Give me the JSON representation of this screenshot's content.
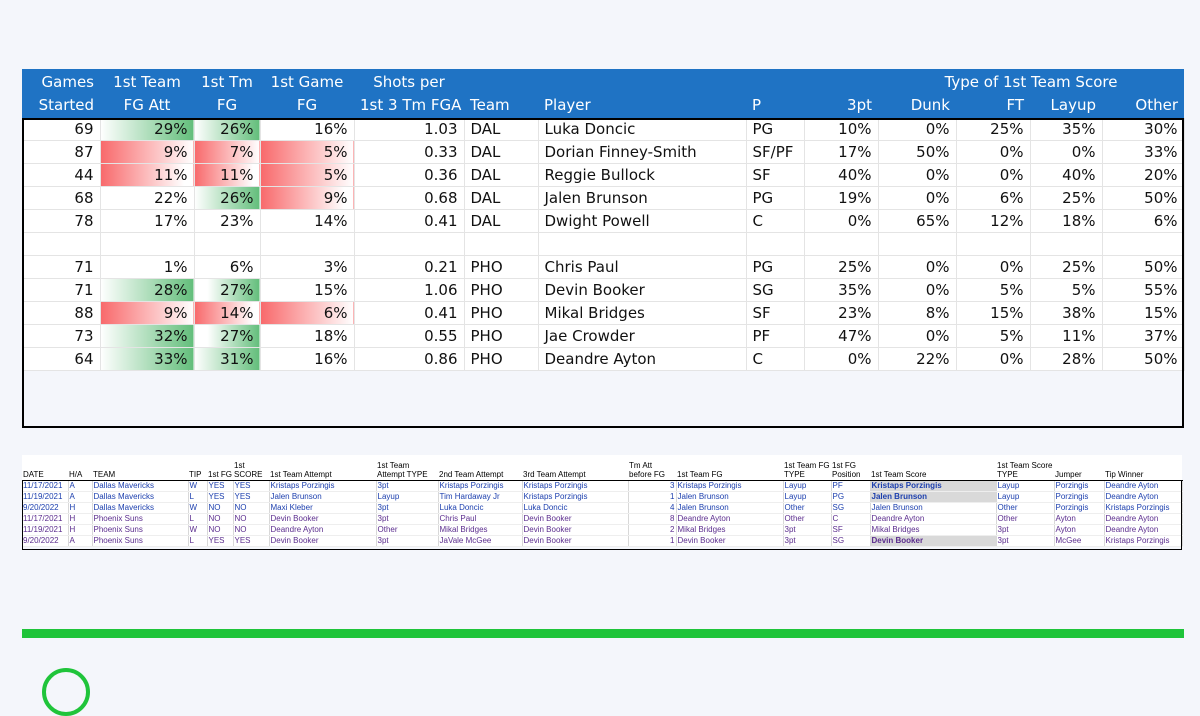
{
  "main_table": {
    "headers_top": [
      "Games",
      "1st Team",
      "1st Tm",
      "1st Game",
      "Shots per",
      "",
      "",
      "",
      "",
      "Type of 1st Team Score",
      "",
      "",
      ""
    ],
    "headers_bottom": [
      "Started",
      "FG Att",
      "FG",
      "FG",
      "1st 3 Tm FGA",
      "Team",
      "Player",
      "P",
      "3pt",
      "Dunk",
      "FT",
      "Layup",
      "Other"
    ],
    "rows": [
      {
        "gs": "69",
        "fga": "29%",
        "fg": "26%",
        "gfg": "16%",
        "spf": "1.03",
        "team": "DAL",
        "player": "Luka Doncic",
        "pos": "PG",
        "pt3": "10%",
        "dunk": "0%",
        "ft": "25%",
        "layup": "35%",
        "other": "30%"
      },
      {
        "gs": "87",
        "fga": "9%",
        "fg": "7%",
        "gfg": "5%",
        "spf": "0.33",
        "team": "DAL",
        "player": "Dorian Finney-Smith",
        "pos": "SF/PF",
        "pt3": "17%",
        "dunk": "50%",
        "ft": "0%",
        "layup": "0%",
        "other": "33%"
      },
      {
        "gs": "44",
        "fga": "11%",
        "fg": "11%",
        "gfg": "5%",
        "spf": "0.36",
        "team": "DAL",
        "player": "Reggie Bullock",
        "pos": "SF",
        "pt3": "40%",
        "dunk": "0%",
        "ft": "0%",
        "layup": "40%",
        "other": "20%"
      },
      {
        "gs": "68",
        "fga": "22%",
        "fg": "26%",
        "gfg": "9%",
        "spf": "0.68",
        "team": "DAL",
        "player": "Jalen Brunson",
        "pos": "PG",
        "pt3": "19%",
        "dunk": "0%",
        "ft": "6%",
        "layup": "25%",
        "other": "50%"
      },
      {
        "gs": "78",
        "fga": "17%",
        "fg": "23%",
        "gfg": "14%",
        "spf": "0.41",
        "team": "DAL",
        "player": "Dwight Powell",
        "pos": "C",
        "pt3": "0%",
        "dunk": "65%",
        "ft": "12%",
        "layup": "18%",
        "other": "6%"
      },
      {
        "gs": "71",
        "fga": "1%",
        "fg": "6%",
        "gfg": "3%",
        "spf": "0.21",
        "team": "PHO",
        "player": "Chris Paul",
        "pos": "PG",
        "pt3": "25%",
        "dunk": "0%",
        "ft": "0%",
        "layup": "25%",
        "other": "50%"
      },
      {
        "gs": "71",
        "fga": "28%",
        "fg": "27%",
        "gfg": "15%",
        "spf": "1.06",
        "team": "PHO",
        "player": "Devin Booker",
        "pos": "SG",
        "pt3": "35%",
        "dunk": "0%",
        "ft": "5%",
        "layup": "5%",
        "other": "55%"
      },
      {
        "gs": "88",
        "fga": "9%",
        "fg": "14%",
        "gfg": "6%",
        "spf": "0.41",
        "team": "PHO",
        "player": "Mikal Bridges",
        "pos": "SF",
        "pt3": "23%",
        "dunk": "8%",
        "ft": "15%",
        "layup": "38%",
        "other": "15%"
      },
      {
        "gs": "73",
        "fga": "32%",
        "fg": "27%",
        "gfg": "18%",
        "spf": "0.55",
        "team": "PHO",
        "player": "Jae Crowder",
        "pos": "PF",
        "pt3": "47%",
        "dunk": "0%",
        "ft": "5%",
        "layup": "11%",
        "other": "37%"
      },
      {
        "gs": "64",
        "fga": "33%",
        "fg": "31%",
        "gfg": "16%",
        "spf": "0.86",
        "team": "PHO",
        "player": "Deandre Ayton",
        "pos": "C",
        "pt3": "0%",
        "dunk": "22%",
        "ft": "0%",
        "layup": "28%",
        "other": "50%"
      }
    ]
  },
  "game_log": {
    "headers": [
      "DATE",
      "H/A",
      "TEAM",
      "TIP",
      "1st FG",
      "1st SCORE",
      "1st Team Attempt",
      "1st Team Attempt TYPE",
      "2nd Team Attempt",
      "3rd Team Attempt",
      "Tm Att before FG",
      "1st Team FG",
      "1st Team FG TYPE",
      "1st FG Position",
      "1st Team Score",
      "1st Team Score TYPE",
      "Jumper",
      "Tip Winner"
    ],
    "rows": [
      [
        "11/17/2021",
        "A",
        "Dallas Mavericks",
        "W",
        "YES",
        "YES",
        "Kristaps Porzingis",
        "3pt",
        "Kristaps Porzingis",
        "Kristaps Porzingis",
        "3",
        "Kristaps Porzingis",
        "Layup",
        "PF",
        "Kristaps Porzingis",
        "Layup",
        "Porzingis",
        "Deandre Ayton"
      ],
      [
        "11/19/2021",
        "A",
        "Dallas Mavericks",
        "L",
        "YES",
        "YES",
        "Jalen Brunson",
        "Layup",
        "Tim Hardaway Jr",
        "Kristaps Porzingis",
        "1",
        "Jalen Brunson",
        "Layup",
        "PG",
        "Jalen Brunson",
        "Layup",
        "Porzingis",
        "Deandre Ayton"
      ],
      [
        "9/20/2022",
        "H",
        "Dallas Mavericks",
        "W",
        "NO",
        "NO",
        "Maxi Kleber",
        "3pt",
        "Luka Doncic",
        "Luka Doncic",
        "4",
        "Jalen Brunson",
        "Other",
        "SG",
        "Jalen Brunson",
        "Other",
        "Porzingis",
        "Kristaps Porzingis"
      ],
      [
        "11/17/2021",
        "H",
        "Phoenix Suns",
        "L",
        "NO",
        "NO",
        "Devin Booker",
        "3pt",
        "Chris Paul",
        "Devin Booker",
        "8",
        "Deandre Ayton",
        "Other",
        "C",
        "Deandre Ayton",
        "Other",
        "Ayton",
        "Deandre Ayton"
      ],
      [
        "11/19/2021",
        "H",
        "Phoenix Suns",
        "W",
        "NO",
        "NO",
        "Deandre Ayton",
        "Other",
        "Mikal Bridges",
        "Devin Booker",
        "2",
        "Mikal Bridges",
        "3pt",
        "SF",
        "Mikal Bridges",
        "3pt",
        "Ayton",
        "Deandre Ayton"
      ],
      [
        "9/20/2022",
        "A",
        "Phoenix Suns",
        "L",
        "YES",
        "YES",
        "Devin Booker",
        "3pt",
        "JaVale McGee",
        "Devin Booker",
        "1",
        "Devin Booker",
        "3pt",
        "SG",
        "Devin Booker",
        "3pt",
        "McGee",
        "Kristaps Porzingis"
      ]
    ]
  },
  "colors": {
    "header_blue": "#1f73c4",
    "green_scale": "#63be7b",
    "red_scale": "#f8696b",
    "footer_green": "#1fc43a",
    "mavs_text": "#1c3fae",
    "suns_text": "#5b2d8e"
  }
}
